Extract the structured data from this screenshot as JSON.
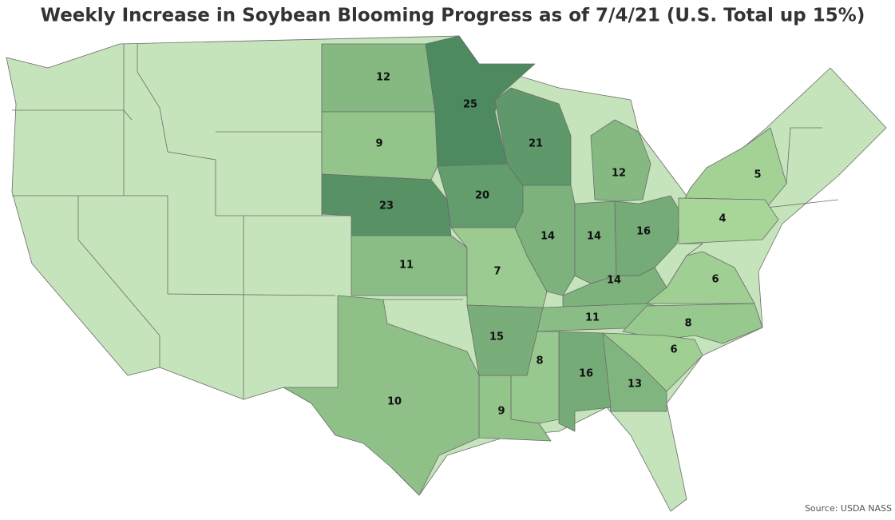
{
  "title": "Weekly Increase in Soybean Blooming Progress as of 7/4/21 (U.S. Total up 15%)",
  "source": "Source: USDA NASS",
  "values": [
    12,
    9,
    25,
    21,
    23,
    20,
    11,
    7,
    14,
    14,
    16,
    12,
    14,
    6,
    11,
    8,
    6,
    13,
    16,
    8,
    9,
    15,
    10,
    5,
    4
  ]
}
